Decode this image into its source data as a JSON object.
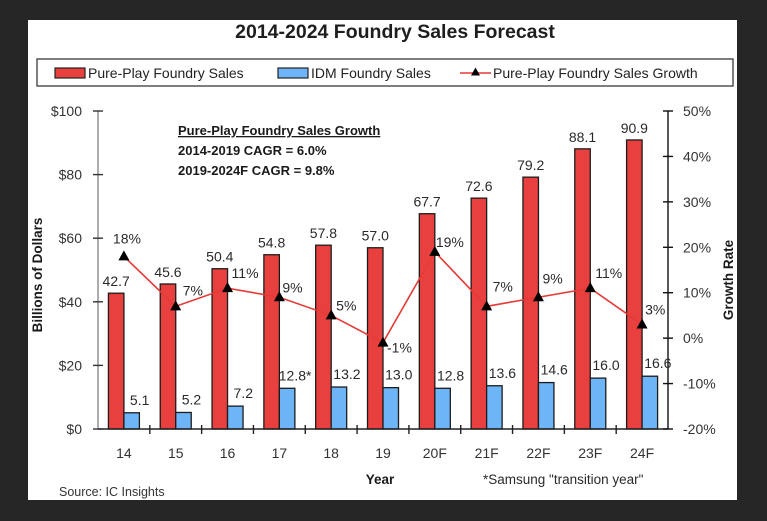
{
  "chart_data": {
    "type": "bar",
    "title": "2014-2024 Foundry Sales Forecast",
    "categories": [
      "14",
      "15",
      "16",
      "17",
      "18",
      "19",
      "20F",
      "21F",
      "22F",
      "23F",
      "24F"
    ],
    "xlabel": "Year",
    "ylabel": "Billions of Dollars",
    "ylabel_right": "Growth Rate",
    "ylim": [
      0,
      100
    ],
    "ylim_right": [
      -20,
      50
    ],
    "yticks": [
      0,
      20,
      40,
      60,
      80,
      100
    ],
    "ytick_labels": [
      "$0",
      "$20",
      "$40",
      "$60",
      "$80",
      "$100"
    ],
    "yticks_right": [
      -20,
      -10,
      0,
      10,
      20,
      30,
      40,
      50
    ],
    "ytick_labels_right": [
      "-20%",
      "-10%",
      "0%",
      "10%",
      "20%",
      "30%",
      "40%",
      "50%"
    ],
    "grid": false,
    "legend_position": "top",
    "series": [
      {
        "name": "Pure-Play Foundry Sales",
        "type": "bar",
        "axis": "left",
        "color": "#E8403E",
        "values": [
          42.7,
          45.6,
          50.4,
          54.8,
          57.8,
          57.0,
          67.7,
          72.6,
          79.2,
          88.1,
          90.9
        ],
        "labels": [
          "42.7",
          "45.6",
          "50.4",
          "54.8",
          "57.8",
          "57.0",
          "67.7",
          "72.6",
          "79.2",
          "88.1",
          "90.9"
        ]
      },
      {
        "name": "IDM Foundry Sales",
        "type": "bar",
        "axis": "left",
        "color": "#6DB5F7",
        "values": [
          5.1,
          5.2,
          7.2,
          12.8,
          13.2,
          13.0,
          12.8,
          13.6,
          14.6,
          16.0,
          16.6
        ],
        "labels": [
          "5.1",
          "5.2",
          "7.2",
          "12.8*",
          "13.2",
          "13.0",
          "12.8",
          "13.6",
          "14.6",
          "16.0",
          "16.6"
        ]
      },
      {
        "name": "Pure-Play Foundry Sales Growth",
        "type": "line",
        "axis": "right",
        "color": "#E53A36",
        "marker": "triangle",
        "marker_color": "#000000",
        "values": [
          18,
          7,
          11,
          9,
          5,
          -1,
          19,
          7,
          9,
          11,
          3
        ],
        "labels": [
          "18%",
          "7%",
          "11%",
          "9%",
          "5%",
          "-1%",
          "19%",
          "7%",
          "9%",
          "11%",
          "3%"
        ]
      }
    ],
    "annotations": {
      "cagr_heading": "Pure-Play Foundry Sales Growth",
      "cagr_lines": [
        "2014-2019 CAGR = 6.0%",
        "2019-2024F CAGR = 9.8%"
      ],
      "footnote": "*Samsung \"transition year\"",
      "source": "Source: IC Insights"
    }
  }
}
